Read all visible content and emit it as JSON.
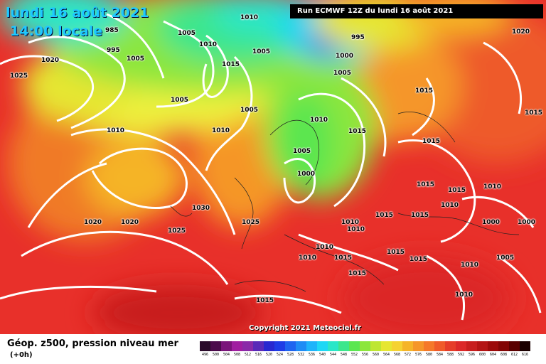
{
  "header": {
    "date": "lundi 16 août 2021",
    "time": "14:00 locale",
    "run": "Run ECMWF 12Z du lundi 16 août 2021"
  },
  "copyright": "Copyright 2021 Meteociel.fr",
  "pressure_labels": [
    "985",
    "995",
    "1020",
    "1005",
    "1025",
    "1010",
    "1005",
    "1010",
    "1015",
    "1005",
    "995",
    "1000",
    "1005",
    "1015",
    "1005",
    "1005",
    "1010",
    "1010",
    "1015",
    "1010",
    "1005",
    "1015",
    "1015",
    "1000",
    "1030",
    "1025",
    "1020",
    "1020",
    "1025",
    "1010",
    "1010",
    "1015",
    "1010",
    "1015",
    "1010",
    "1015",
    "1015",
    "1010",
    "1000",
    "1000",
    "1005",
    "1010",
    "1015",
    "1015",
    "1015",
    "1020",
    "1015",
    "1010",
    "1010",
    "1015"
  ],
  "footer": {
    "title": "Géop. z500, pression niveau mer",
    "subtitle": "(+0h)"
  },
  "scale": {
    "labels": [
      "496",
      "500",
      "504",
      "508",
      "512",
      "516",
      "520",
      "524",
      "528",
      "532",
      "536",
      "540",
      "544",
      "548",
      "552",
      "556",
      "560",
      "564",
      "568",
      "572",
      "576",
      "580",
      "584",
      "588",
      "592",
      "596",
      "600",
      "604",
      "608",
      "612",
      "616"
    ],
    "colors": [
      "#2a0a2a",
      "#4b0a4b",
      "#7a147a",
      "#a01ea0",
      "#8a2aa8",
      "#5a2ab8",
      "#2828d0",
      "#1e3ce6",
      "#1e64f0",
      "#1e8cf5",
      "#1eb4fa",
      "#1ed7f5",
      "#2ae6c8",
      "#3ce68c",
      "#5ae650",
      "#8ce63c",
      "#bee632",
      "#e6e632",
      "#f5d232",
      "#f5b428",
      "#f59628",
      "#f57828",
      "#f05a28",
      "#e63c28",
      "#dc2828",
      "#c81e1e",
      "#b41414",
      "#9c0a0a",
      "#820505",
      "#5a0000",
      "#1a0000"
    ]
  }
}
